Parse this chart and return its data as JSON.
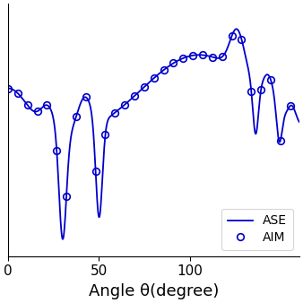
{
  "title": "",
  "xlabel": "Angle θ(degree)",
  "ylabel": "",
  "xlim": [
    0,
    160
  ],
  "xticks": [
    0,
    50,
    100
  ],
  "line_color": "#0000CC",
  "marker_color": "#0000CC",
  "legend_labels": [
    "ASE",
    "AIM"
  ],
  "background_color": "#ffffff",
  "figsize": [
    3.38,
    3.38
  ],
  "dpi": 100
}
